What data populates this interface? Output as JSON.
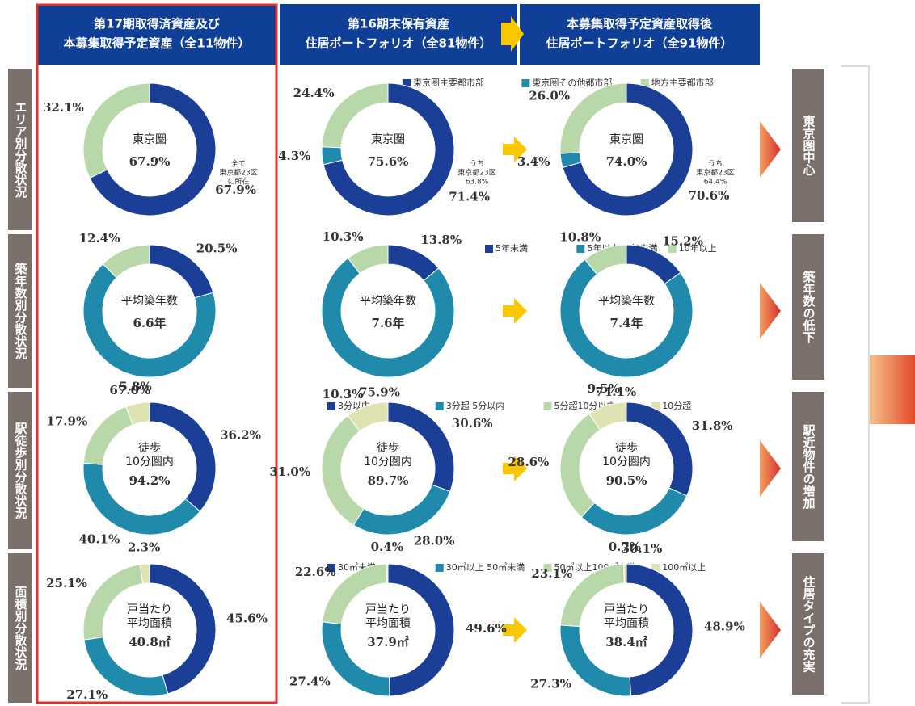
{
  "columns": [
    [
      "第17期取得済資産及び",
      "本募集取得予定資産（全11物件）"
    ],
    [
      "第16期末保有資産",
      "住居ポートフォリオ（全81物件）"
    ],
    [
      "本募集取得予定資産取得後",
      "住居ポートフォリオ（全91物件）"
    ]
  ],
  "rows": [
    {
      "label": "エリア別分散状況",
      "legend": [
        "東京圏主要都市部",
        "東京圏その他都市部",
        "地方主要都市部"
      ],
      "conclusion": "東京圏中心"
    },
    {
      "label": "築年数別分散状況",
      "legend": [
        "5年未満",
        "5年以上10年未満",
        "10年以上"
      ],
      "conclusion": "築年数の低下"
    },
    {
      "label": "駅徒歩別分散状況",
      "legend": [
        "3分以内",
        "3分超 5分以内",
        "5分超10分以内",
        "10分超"
      ],
      "conclusion": "駅近物件の増加"
    },
    {
      "label": "面積別分散状況",
      "legend": [
        "30㎡未満",
        "30㎡以上 50㎡未満",
        "50㎡以上100㎡未満",
        "100㎡以上"
      ],
      "conclusion": "住居タイプの充実"
    }
  ],
  "chart_data": [
    {
      "type": "donut",
      "values": [
        67.9,
        32.1
      ],
      "value_labels": [
        "67.9%",
        "32.1%"
      ],
      "colors": [
        "#1b3f96",
        "#b9d8a9"
      ],
      "center_label": [
        "東京圏"
      ],
      "center_value": "67.9%",
      "annotation": [
        "全て",
        "東京都23区",
        "に所在"
      ]
    },
    {
      "type": "donut",
      "values": [
        71.4,
        4.3,
        24.4
      ],
      "value_labels": [
        "71.4%",
        "4.3%",
        "24.4%"
      ],
      "colors": [
        "#1b3f96",
        "#1f8aab",
        "#b9d8a9"
      ],
      "center_label": [
        "東京圏"
      ],
      "center_value": "75.6%",
      "annotation": [
        "うち",
        "東京都23区",
        "63.8%"
      ]
    },
    {
      "type": "donut",
      "values": [
        70.6,
        3.4,
        26.0
      ],
      "value_labels": [
        "70.6%",
        "3.4%",
        "26.0%"
      ],
      "colors": [
        "#1b3f96",
        "#1f8aab",
        "#b9d8a9"
      ],
      "center_label": [
        "東京圏"
      ],
      "center_value": "74.0%",
      "annotation": [
        "うち",
        "東京都23区",
        "64.4%"
      ]
    },
    {
      "type": "donut",
      "values": [
        20.5,
        67.0,
        12.4
      ],
      "value_labels": [
        "20.5%",
        "67.0%",
        "12.4%"
      ],
      "colors": [
        "#1b3f96",
        "#1f8aab",
        "#b9d8a9"
      ],
      "center_label": [
        "平均築年数"
      ],
      "center_value": "6.6年"
    },
    {
      "type": "donut",
      "values": [
        13.8,
        75.9,
        10.3
      ],
      "value_labels": [
        "13.8%",
        "75.9%",
        "10.3%"
      ],
      "colors": [
        "#1b3f96",
        "#1f8aab",
        "#b9d8a9"
      ],
      "center_label": [
        "平均築年数"
      ],
      "center_value": "7.6年"
    },
    {
      "type": "donut",
      "values": [
        15.2,
        74.1,
        10.8
      ],
      "value_labels": [
        "15.2%",
        "74.1%",
        "10.8%"
      ],
      "colors": [
        "#1b3f96",
        "#1f8aab",
        "#b9d8a9"
      ],
      "center_label": [
        "平均築年数"
      ],
      "center_value": "7.4年"
    },
    {
      "type": "donut",
      "values": [
        36.2,
        40.1,
        17.9,
        5.8
      ],
      "value_labels": [
        "36.2%",
        "40.1%",
        "17.9%",
        "5.8%"
      ],
      "colors": [
        "#1b3f96",
        "#1f8aab",
        "#b9d8a9",
        "#dfe3b2"
      ],
      "center_label": [
        "徒歩",
        "10分圏内"
      ],
      "center_value": "94.2%"
    },
    {
      "type": "donut",
      "values": [
        30.6,
        28.0,
        31.0,
        10.3
      ],
      "value_labels": [
        "30.6%",
        "28.0%",
        "31.0%",
        "10.3%"
      ],
      "colors": [
        "#1b3f96",
        "#1f8aab",
        "#b9d8a9",
        "#dfe3b2"
      ],
      "center_label": [
        "徒歩",
        "10分圏内"
      ],
      "center_value": "89.7%"
    },
    {
      "type": "donut",
      "values": [
        31.8,
        30.1,
        28.6,
        9.5
      ],
      "value_labels": [
        "31.8%",
        "30.1%",
        "28.6%",
        "9.5%"
      ],
      "colors": [
        "#1b3f96",
        "#1f8aab",
        "#b9d8a9",
        "#dfe3b2"
      ],
      "center_label": [
        "徒歩",
        "10分圏内"
      ],
      "center_value": "90.5%"
    },
    {
      "type": "donut",
      "values": [
        45.6,
        27.1,
        25.1,
        2.3
      ],
      "value_labels": [
        "45.6%",
        "27.1%",
        "25.1%",
        "2.3%"
      ],
      "colors": [
        "#1b3f96",
        "#1f8aab",
        "#b9d8a9",
        "#dfe3b2"
      ],
      "center_label": [
        "戸当たり",
        "平均面積"
      ],
      "center_value": "40.8㎡"
    },
    {
      "type": "donut",
      "values": [
        49.6,
        27.4,
        22.6,
        0.4
      ],
      "value_labels": [
        "49.6%",
        "27.4%",
        "22.6%",
        "0.4%"
      ],
      "colors": [
        "#1b3f96",
        "#1f8aab",
        "#b9d8a9",
        "#dfe3b2"
      ],
      "center_label": [
        "戸当たり",
        "平均面積"
      ],
      "center_value": "37.9㎡"
    },
    {
      "type": "donut",
      "values": [
        48.9,
        27.3,
        23.1,
        0.7
      ],
      "value_labels": [
        "48.9%",
        "27.3%",
        "23.1%",
        "0.7%"
      ],
      "colors": [
        "#1b3f96",
        "#1f8aab",
        "#b9d8a9",
        "#dfe3b2"
      ],
      "center_label": [
        "戸当たり",
        "平均面積"
      ],
      "center_value": "38.4㎡"
    }
  ]
}
